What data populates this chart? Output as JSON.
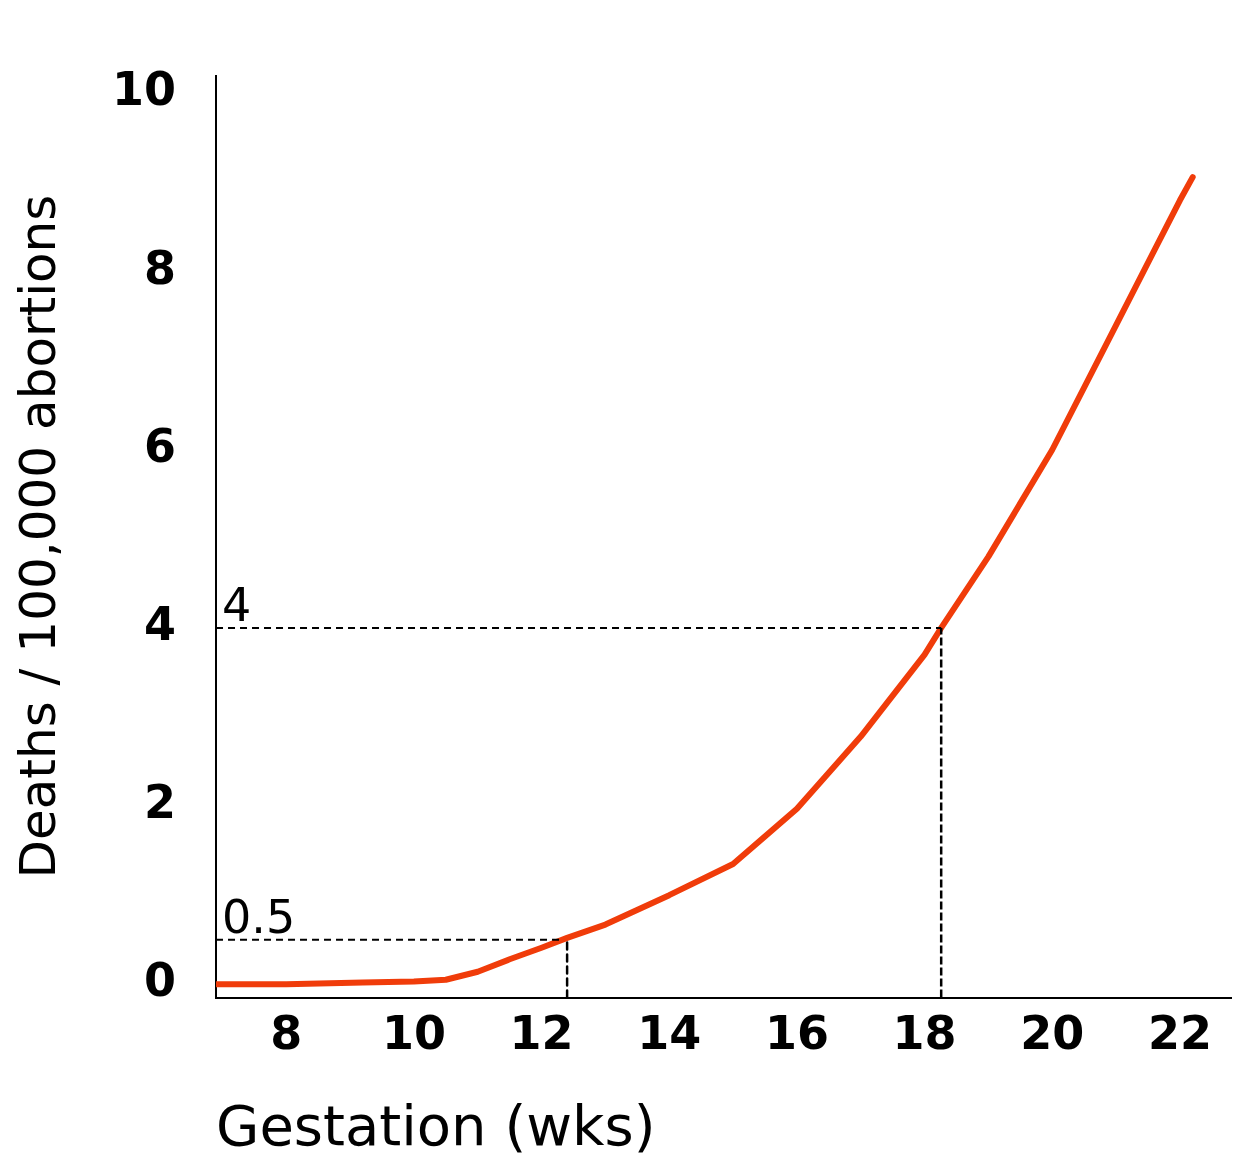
{
  "chart_data": {
    "type": "line",
    "xlabel": "Gestation (wks)",
    "ylabel": "Deaths / 100,000 abortions",
    "series": [
      {
        "color": "#f03c0a",
        "x": [
          6.9,
          8,
          9.2,
          10,
          10.5,
          11,
          11.5,
          12,
          12.4,
          13,
          14,
          15,
          16,
          17,
          18,
          18.26,
          19,
          20,
          21,
          22,
          22.2
        ],
        "values": [
          0,
          0,
          0.02,
          0.03,
          0.05,
          0.14,
          0.28,
          0.41,
          0.52,
          0.67,
          1.0,
          1.35,
          1.97,
          2.78,
          3.7,
          4.0,
          4.8,
          6.0,
          7.4,
          8.8,
          9.06
        ]
      },
      {
        "type": "line",
        "color": "#000000",
        "line_style": "dashed",
        "x": [
          12.4,
          12.4
        ],
        "values": [
          -0.15,
          0.5
        ]
      }
    ],
    "xlim": [
      6.9,
      22.8
    ],
    "xticks": [
      8,
      10,
      12,
      14,
      16,
      18,
      20,
      22
    ],
    "ylim": [
      -0.15,
      10.2
    ],
    "yticks": [
      0,
      2,
      4,
      6,
      8,
      10
    ],
    "grid": false,
    "legend": false,
    "marker": "none",
    "line_style": "solid",
    "ref_lines": [
      {
        "axis": "y",
        "value": 0.5,
        "label": "0.5",
        "line_style": "dashed"
      },
      {
        "axis": "y",
        "value": 4,
        "label": "4",
        "line_style": "dashed"
      },
      {
        "axis": "x",
        "value": 18.26,
        "line_style": "dashed"
      }
    ]
  }
}
